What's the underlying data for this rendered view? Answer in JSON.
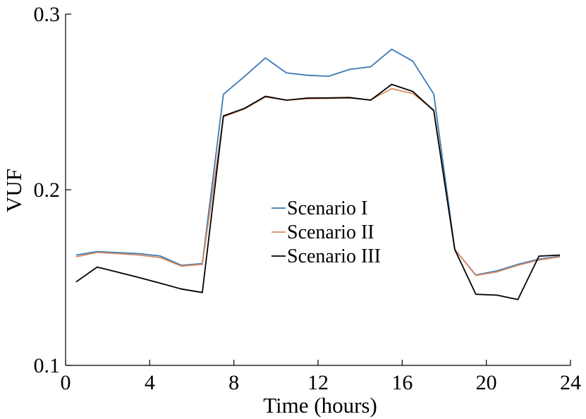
{
  "chart_data": {
    "type": "line",
    "title": "",
    "xlabel": "Time (hours)",
    "ylabel": "VUF",
    "xlim": [
      0,
      24
    ],
    "ylim": [
      0.1,
      0.3
    ],
    "xticks": [
      0,
      4,
      8,
      12,
      16,
      20,
      24
    ],
    "xtick_labels": [
      "0",
      "4",
      "8",
      "12",
      "16",
      "20",
      "24"
    ],
    "yticks": [
      0.1,
      0.2,
      0.3
    ],
    "ytick_labels": [
      "0.1",
      "0.2",
      "0.3"
    ],
    "grid": false,
    "legend_position": "center",
    "x": [
      0.5,
      1.5,
      2.5,
      3.5,
      4.5,
      5.5,
      6.5,
      7.5,
      8.5,
      9.5,
      10.5,
      11.5,
      12.5,
      13.5,
      14.5,
      15.5,
      16.5,
      17.5,
      18.5,
      19.5,
      20.5,
      21.5,
      22.5,
      23.5
    ],
    "series": [
      {
        "name": "Scenario I",
        "color": "#3a7ab5",
        "values": [
          0.1628,
          0.1648,
          0.1642,
          0.1636,
          0.1623,
          0.157,
          0.158,
          0.2543,
          0.2645,
          0.275,
          0.2665,
          0.2652,
          0.2646,
          0.2685,
          0.27,
          0.28,
          0.2732,
          0.2545,
          0.166,
          0.1515,
          0.1538,
          0.1575,
          0.1605,
          0.1622
        ]
      },
      {
        "name": "Scenario II",
        "color": "#d98c64",
        "values": [
          0.1618,
          0.1643,
          0.1636,
          0.1628,
          0.1614,
          0.1565,
          0.1575,
          0.2415,
          0.246,
          0.2528,
          0.251,
          0.2518,
          0.252,
          0.2522,
          0.2512,
          0.2575,
          0.2548,
          0.2455,
          0.166,
          0.1512,
          0.1532,
          0.157,
          0.16,
          0.1618
        ]
      },
      {
        "name": "Scenario III",
        "color": "#000000",
        "values": [
          0.1475,
          0.156,
          0.153,
          0.15,
          0.1468,
          0.1435,
          0.1415,
          0.242,
          0.2463,
          0.2532,
          0.251,
          0.2522,
          0.2523,
          0.2525,
          0.251,
          0.26,
          0.256,
          0.245,
          0.166,
          0.1405,
          0.14,
          0.1375,
          0.1622,
          0.1628
        ]
      }
    ]
  }
}
